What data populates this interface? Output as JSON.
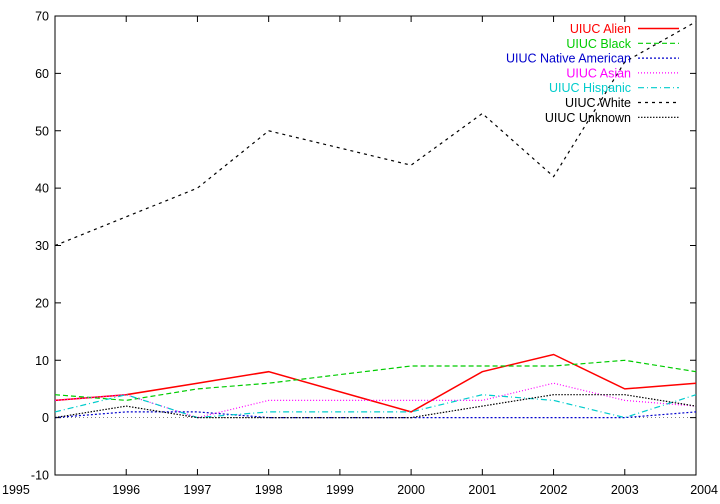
{
  "chart_data": {
    "type": "line",
    "title": "",
    "xlabel": "",
    "ylabel": "",
    "x": [
      1995,
      1996,
      1997,
      1998,
      1999,
      2000,
      2001,
      2002,
      2003,
      2004
    ],
    "xlim": [
      1995,
      2004
    ],
    "ylim": [
      -10,
      70
    ],
    "x_ticks": [
      1995,
      1996,
      1997,
      1998,
      1999,
      2000,
      2001,
      2002,
      2003,
      2004
    ],
    "y_ticks": [
      -10,
      0,
      10,
      20,
      30,
      40,
      50,
      60,
      70
    ],
    "grid": false,
    "legend_position": "top-right",
    "series": [
      {
        "name": "UIUC Alien",
        "color": "#ff0000",
        "dash": "solid",
        "values": [
          3,
          4,
          6,
          8,
          null,
          1,
          8,
          11,
          5,
          6
        ]
      },
      {
        "name": "UIUC Black",
        "color": "#00cc00",
        "dash": "5,3",
        "values": [
          4,
          3,
          5,
          6,
          null,
          9,
          9,
          9,
          10,
          8
        ]
      },
      {
        "name": "UIUC Native American",
        "color": "#0000cc",
        "dash": "2,2",
        "values": [
          0,
          1,
          1,
          0,
          null,
          0,
          0,
          0,
          0,
          1
        ]
      },
      {
        "name": "UIUC Asian",
        "color": "#ff00ff",
        "dash": "1,2",
        "values": [
          3,
          4,
          0,
          3,
          null,
          3,
          3,
          6,
          3,
          2
        ]
      },
      {
        "name": "UIUC Hispanic",
        "color": "#00cccc",
        "dash": "6,3,1,3",
        "values": [
          1,
          4,
          0,
          1,
          null,
          1,
          4,
          3,
          0,
          4
        ]
      },
      {
        "name": "UIUC White",
        "color": "#000000",
        "dash": "3,4",
        "values": [
          30,
          35,
          40,
          50,
          null,
          44,
          53,
          42,
          62,
          69
        ]
      },
      {
        "name": "UIUC Unknown",
        "color": "#000000",
        "dash": "1.5,1.5",
        "values": [
          0,
          2,
          0,
          0,
          null,
          0,
          2,
          4,
          4,
          2
        ]
      }
    ]
  }
}
